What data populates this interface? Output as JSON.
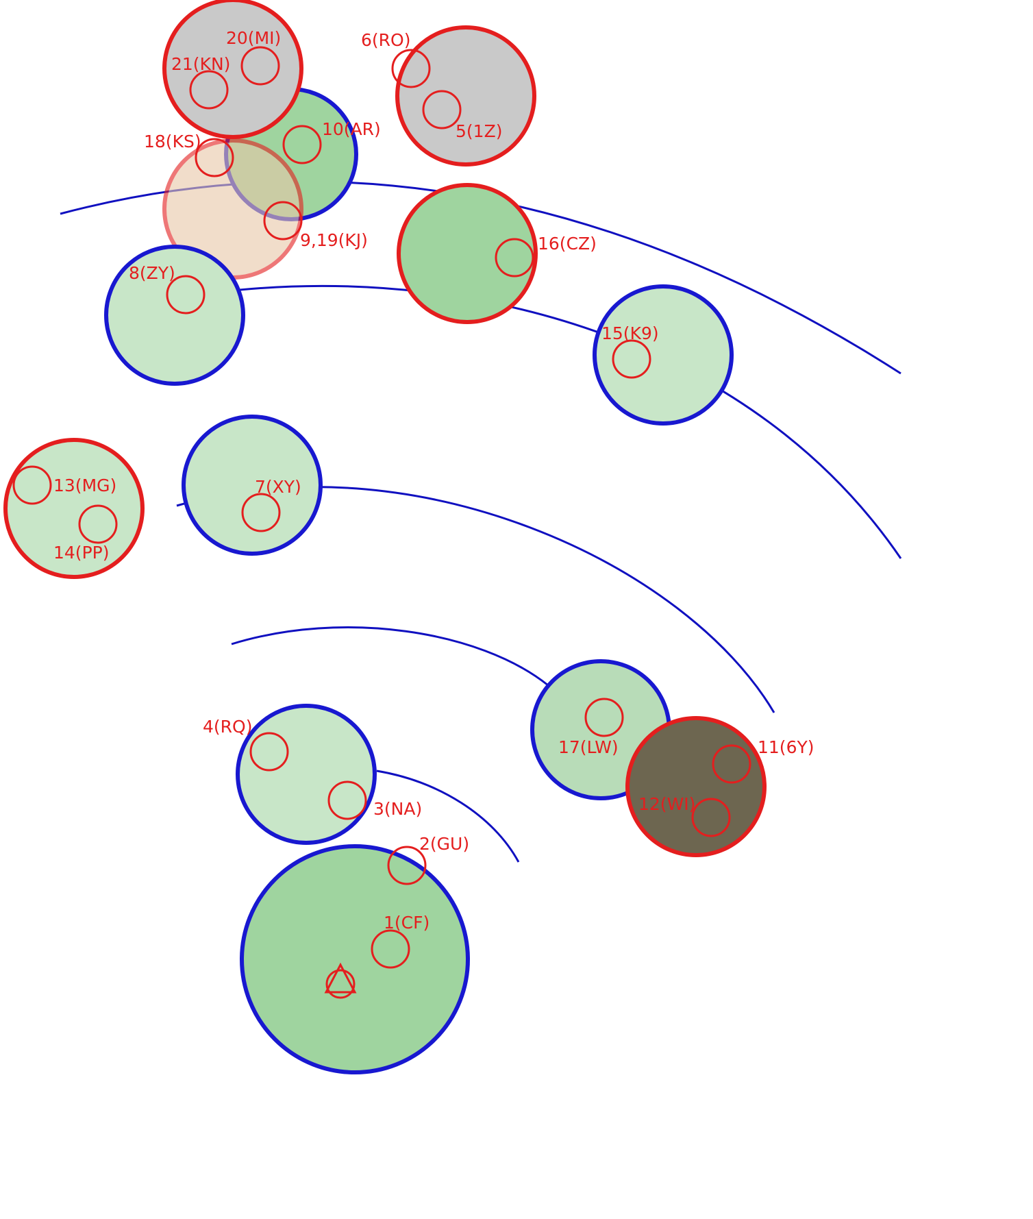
{
  "controls": [
    {
      "label": "1(CF)"
    },
    {
      "label": "2(GU)"
    },
    {
      "label": "3(NA)"
    },
    {
      "label": "4(RQ)"
    },
    {
      "label": "5(1Z)"
    },
    {
      "label": "6(RO)"
    },
    {
      "label": "7(XY)"
    },
    {
      "label": "8(ZY)"
    },
    {
      "label": "9,19(KJ)"
    },
    {
      "label": "10(AR)"
    },
    {
      "label": "11(6Y)"
    },
    {
      "label": "12(WI)"
    },
    {
      "label": "13(MG)"
    },
    {
      "label": "14(PP)"
    },
    {
      "label": "15(K9)"
    },
    {
      "label": "16(CZ)"
    },
    {
      "label": "17(LW)"
    },
    {
      "label": "18(KS)"
    },
    {
      "label": "20(MI)"
    },
    {
      "label": "21(KN)"
    }
  ]
}
